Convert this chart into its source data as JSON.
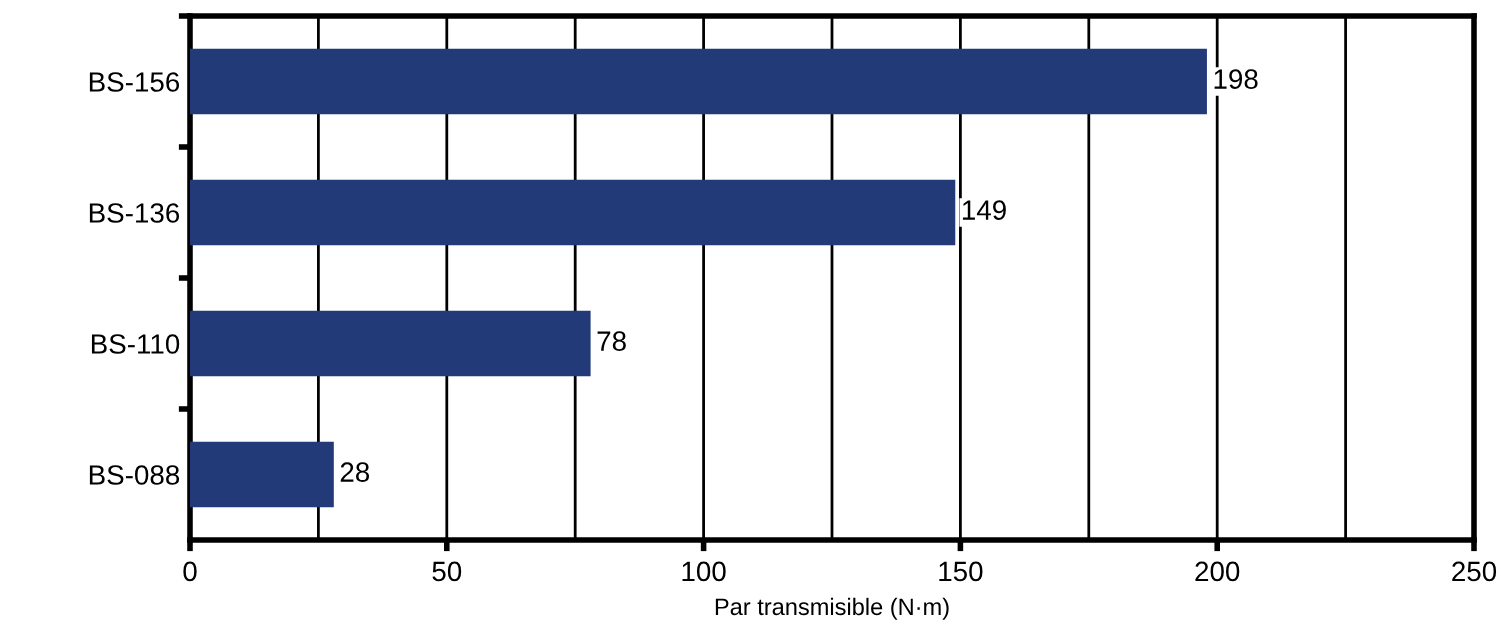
{
  "chart_data": {
    "type": "bar",
    "orientation": "horizontal",
    "xlabel": "Par transmisible (N·m)",
    "categories": [
      "BS-156",
      "BS-136",
      "BS-110",
      "BS-088"
    ],
    "values": [
      198,
      149,
      78,
      28
    ],
    "color": "#223a78",
    "xlim": [
      0,
      250
    ],
    "xticks": [
      0,
      {
        "value": 25,
        "label": null
      },
      50,
      {
        "value": 75,
        "label": null
      },
      100,
      {
        "value": 125,
        "label": null
      },
      150,
      {
        "value": 175,
        "label": null
      },
      200,
      {
        "value": 225,
        "label": null
      },
      250
    ],
    "grid": "x",
    "data_labels": true
  }
}
